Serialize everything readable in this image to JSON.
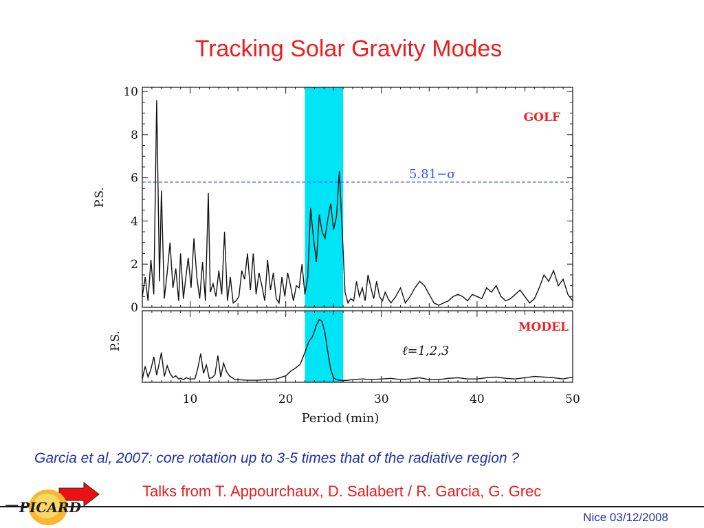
{
  "title": "Tracking Solar Gravity Modes",
  "caption": "Garcia et al, 2007: core rotation up to 3-5 times that of the radiative region ?",
  "talks": "Talks from T. Appourchaux, D. Salabert / R. Garcia, G. Grec",
  "footer_date": "Nice 03/12/2008",
  "logo": {
    "text": "PICARD",
    "color": "#f5a623"
  },
  "icons": {
    "arrow": "red-right-arrow-icon"
  },
  "colors": {
    "highlight": "#00e5f5",
    "threshold": "#3355ff",
    "panel_label": "#ee2222",
    "text_red": "#e81c1c",
    "text_blue": "#1f2fa8"
  },
  "chart_data": [
    {
      "type": "line",
      "panel": "top",
      "label": "GOLF",
      "ylabel": "P.S.",
      "xlim": [
        5,
        50
      ],
      "ylim": [
        0,
        10
      ],
      "yticks": [
        0,
        2,
        4,
        6,
        8,
        10
      ],
      "threshold": {
        "value": 5.8,
        "label": "5.81−σ"
      },
      "highlight_band": [
        22,
        26
      ],
      "series": [
        {
          "x": [
            5.0,
            5.3,
            5.6,
            5.9,
            6.2,
            6.5,
            6.8,
            7.0,
            7.3,
            7.6,
            7.9,
            8.2,
            8.5,
            8.8,
            9.0,
            9.3,
            9.5,
            9.8,
            10.1,
            10.4,
            10.7,
            11.0,
            11.3,
            11.6,
            11.9,
            12.1,
            12.4,
            12.7,
            13.0,
            13.3,
            13.6,
            13.9,
            14.2,
            14.5,
            14.8,
            15.1,
            15.4,
            15.7,
            16.0,
            16.3,
            16.6,
            16.9,
            17.2,
            17.5,
            17.8,
            18.1,
            18.4,
            18.7,
            19.0,
            19.3,
            19.6,
            19.9,
            20.2,
            20.5,
            20.8,
            21.1,
            21.4,
            21.7,
            22.0,
            22.3,
            22.6,
            22.9,
            23.2,
            23.5,
            23.8,
            24.1,
            24.4,
            24.7,
            25.0,
            25.3,
            25.6,
            25.9,
            26.2,
            26.5,
            26.8,
            27.1,
            27.4,
            27.7,
            28.0,
            28.3,
            28.6,
            28.9,
            29.2,
            29.5,
            29.8,
            30.1,
            30.4,
            30.7,
            31.0,
            31.5,
            32.0,
            32.5,
            33.0,
            33.5,
            34.0,
            34.5,
            35.0,
            35.5,
            36.0,
            36.5,
            37.0,
            37.5,
            38.0,
            38.5,
            39.0,
            39.5,
            40.0,
            40.5,
            41.0,
            41.5,
            42.0,
            42.5,
            43.0,
            43.5,
            44.0,
            44.5,
            45.0,
            45.5,
            46.0,
            46.5,
            47.0,
            47.5,
            48.0,
            48.5,
            49.0,
            49.5,
            50.0
          ],
          "y": [
            0.5,
            1.4,
            0.3,
            2.2,
            0.6,
            9.6,
            1.2,
            5.4,
            0.4,
            1.6,
            3.0,
            0.9,
            1.8,
            0.3,
            2.5,
            0.4,
            1.2,
            2.3,
            0.9,
            3.2,
            1.4,
            0.4,
            2.1,
            0.3,
            5.3,
            0.7,
            1.1,
            0.5,
            1.7,
            0.6,
            3.5,
            0.3,
            1.4,
            0.2,
            0.3,
            0.5,
            1.7,
            1.3,
            2.5,
            0.8,
            2.5,
            0.6,
            1.6,
            1.0,
            0.3,
            2.2,
            0.8,
            1.6,
            0.4,
            0.2,
            1.4,
            0.5,
            1.6,
            1.0,
            0.3,
            1.0,
            0.9,
            2.0,
            0.6,
            1.4,
            4.6,
            3.2,
            2.1,
            4.3,
            3.5,
            3.2,
            4.1,
            4.8,
            3.6,
            4.2,
            6.3,
            3.6,
            0.7,
            0.2,
            0.4,
            0.3,
            1.2,
            0.5,
            0.9,
            0.3,
            1.5,
            0.9,
            0.4,
            1.2,
            0.5,
            0.3,
            0.7,
            0.4,
            0.2,
            0.5,
            0.9,
            0.2,
            0.5,
            0.9,
            1.2,
            1.0,
            0.6,
            0.2,
            0.1,
            0.2,
            0.3,
            0.5,
            0.6,
            0.5,
            0.3,
            0.6,
            0.5,
            0.4,
            0.9,
            0.7,
            1.0,
            0.5,
            0.3,
            0.4,
            0.6,
            0.8,
            0.5,
            0.2,
            0.4,
            0.9,
            1.5,
            1.2,
            1.7,
            1.0,
            1.3,
            0.6,
            0.3
          ]
        }
      ]
    },
    {
      "type": "line",
      "panel": "bottom",
      "label": "MODEL",
      "annotation": "ℓ=1,2,3",
      "ylabel": "P.S.",
      "xlim": [
        5,
        50
      ],
      "ylim": [
        0,
        10
      ],
      "xticks": [
        10,
        20,
        30,
        40,
        50
      ],
      "xlabel": "Period (min)",
      "highlight_band": [
        22,
        26
      ],
      "series": [
        {
          "x": [
            5.0,
            5.3,
            5.6,
            5.9,
            6.2,
            6.5,
            6.8,
            7.0,
            7.3,
            7.6,
            7.9,
            8.2,
            8.5,
            8.8,
            9.0,
            9.3,
            9.6,
            9.9,
            10.2,
            10.5,
            10.8,
            11.1,
            11.4,
            11.7,
            12.0,
            12.3,
            12.6,
            12.9,
            13.2,
            13.5,
            13.8,
            14.1,
            14.4,
            14.7,
            15.0,
            16.0,
            17.0,
            18.0,
            19.0,
            20.0,
            20.5,
            21.0,
            21.5,
            22.0,
            22.4,
            22.8,
            23.2,
            23.5,
            23.8,
            24.1,
            24.4,
            24.7,
            25.0,
            25.3,
            25.6,
            26.0,
            26.5,
            27.0,
            28.0,
            29.0,
            30.0,
            31.0,
            32.0,
            33.0,
            34.0,
            35.0,
            36.0,
            37.0,
            38.0,
            39.0,
            40.0,
            41.0,
            42.0,
            43.0,
            44.0,
            45.0,
            46.0,
            47.0,
            48.0,
            49.0,
            50.0
          ],
          "y": [
            0.3,
            2.3,
            0.6,
            1.8,
            3.8,
            0.9,
            3.0,
            4.5,
            0.7,
            2.4,
            1.2,
            0.5,
            0.8,
            0.3,
            0.4,
            0.2,
            0.5,
            0.3,
            0.3,
            0.3,
            2.0,
            4.3,
            1.2,
            2.5,
            0.4,
            0.5,
            1.0,
            4.0,
            0.6,
            2.8,
            1.5,
            0.8,
            0.5,
            0.2,
            0.2,
            0.1,
            0.1,
            0.2,
            0.3,
            0.8,
            1.5,
            2.0,
            2.6,
            4.5,
            6.2,
            7.0,
            8.8,
            9.7,
            9.4,
            7.6,
            4.5,
            1.8,
            0.5,
            0.2,
            0.1,
            0.05,
            0.1,
            0.2,
            0.3,
            0.2,
            0.3,
            0.4,
            0.2,
            0.3,
            0.5,
            0.2,
            0.2,
            0.4,
            0.5,
            0.3,
            0.3,
            0.5,
            0.6,
            0.4,
            0.3,
            0.5,
            0.7,
            0.6,
            0.5,
            0.3,
            0.6
          ]
        }
      ]
    }
  ]
}
